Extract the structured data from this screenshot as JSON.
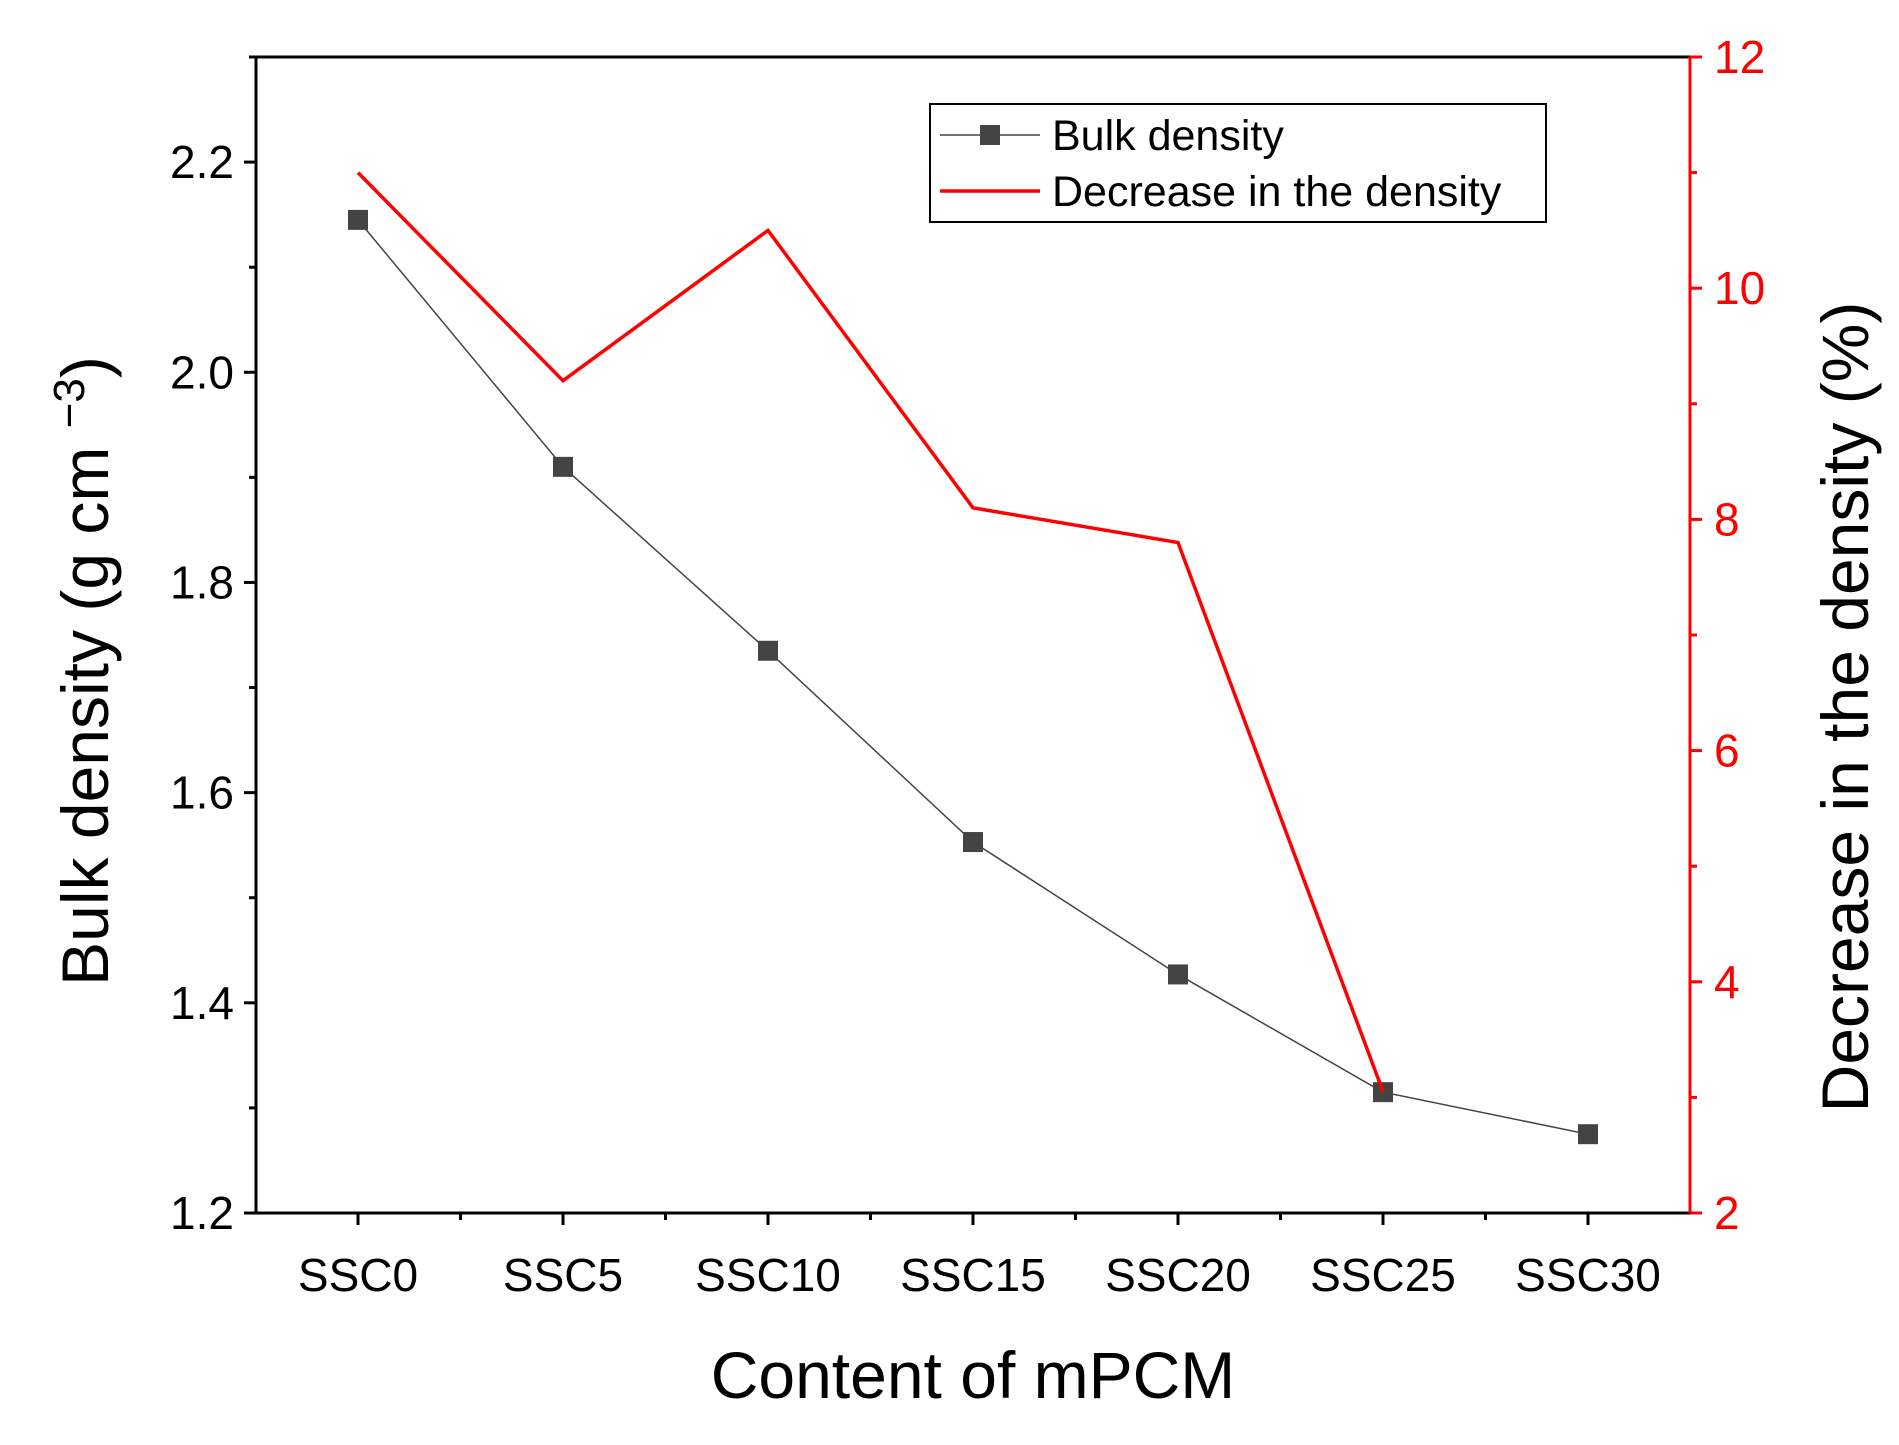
{
  "chart_data": {
    "type": "line",
    "categories": [
      "SSC0",
      "SSC5",
      "SSC10",
      "SSC15",
      "SSC20",
      "SSC25",
      "SSC30"
    ],
    "xlabel": "Content of mPCM",
    "ylabel": {
      "main": "Bulk density (g cm",
      "superscript": "−3",
      "close": ")"
    },
    "y2label": "Decrease in the density (%)",
    "ylim": [
      1.2,
      2.3
    ],
    "y2lim": [
      2,
      12
    ],
    "yticks": [
      "1.2",
      "1.4",
      "1.6",
      "1.8",
      "2.0",
      "2.2"
    ],
    "y2ticks": [
      "2",
      "4",
      "6",
      "8",
      "10",
      "12"
    ],
    "legend": {
      "position": "top-right",
      "entries": [
        "Bulk density",
        "Decrease in the density"
      ]
    },
    "series": [
      {
        "name": "Bulk density",
        "axis": "left",
        "marker": "square",
        "color": "#444444",
        "values": [
          2.145,
          1.91,
          1.735,
          1.553,
          1.427,
          1.315,
          1.275
        ]
      },
      {
        "name": "Decrease in the density",
        "axis": "right",
        "marker": "none",
        "color": "#ff0000",
        "values": [
          11.0,
          9.2,
          10.5,
          8.1,
          7.8,
          3.05,
          null
        ]
      }
    ]
  }
}
